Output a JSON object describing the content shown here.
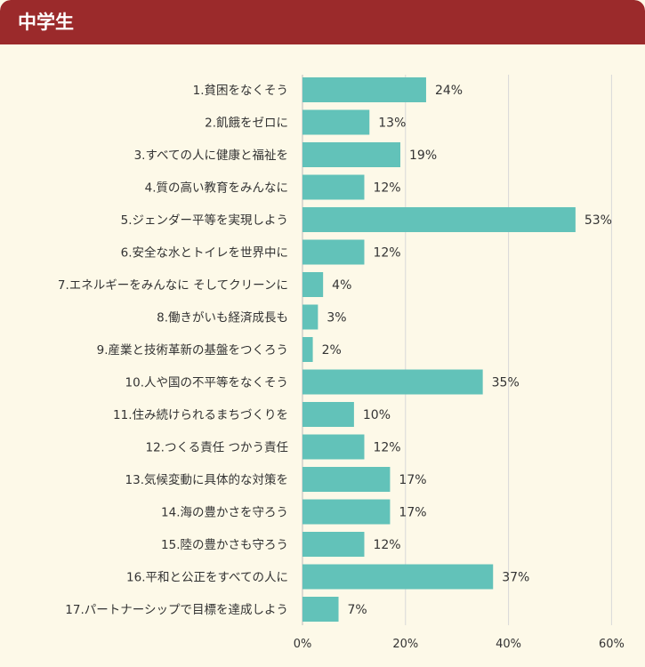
{
  "header": {
    "title": "中学生"
  },
  "colors": {
    "header_bg": "#9b2a2b",
    "background": "#fdf9e8",
    "bar": "#62c2b9",
    "grid": "#d8d8d8"
  },
  "chart_data": {
    "type": "bar",
    "orientation": "horizontal",
    "title": "中学生",
    "categories": [
      "1.貧困をなくそう",
      "2.飢餓をゼロに",
      "3.すべての人に健康と福祉を",
      "4.質の高い教育をみんなに",
      "5.ジェンダー平等を実現しよう",
      "6.安全な水とトイレを世界中に",
      "7.エネルギーをみんなに そしてクリーンに",
      "8.働きがいも経済成長も",
      "9.産業と技術革新の基盤をつくろう",
      "10.人や国の不平等をなくそう",
      "11.住み続けられるまちづくりを",
      "12.つくる責任 つかう責任",
      "13.気候変動に具体的な対策を",
      "14.海の豊かさを守ろう",
      "15.陸の豊かさも守ろう",
      "16.平和と公正をすべての人に",
      "17.パートナーシップで目標を達成しよう"
    ],
    "values": [
      24,
      13,
      19,
      12,
      53,
      12,
      4,
      3,
      2,
      35,
      10,
      12,
      17,
      17,
      12,
      37,
      7
    ],
    "value_labels": [
      "24%",
      "13%",
      "19%",
      "12%",
      "53%",
      "12%",
      "4%",
      "3%",
      "2%",
      "35%",
      "10%",
      "12%",
      "17%",
      "17%",
      "12%",
      "37%",
      "7%"
    ],
    "xlim": [
      0,
      60
    ],
    "xticks": [
      0,
      20,
      40,
      60
    ],
    "xtick_labels": [
      "0%",
      "20%",
      "40%",
      "60%"
    ],
    "grid": true,
    "legend": "none"
  }
}
